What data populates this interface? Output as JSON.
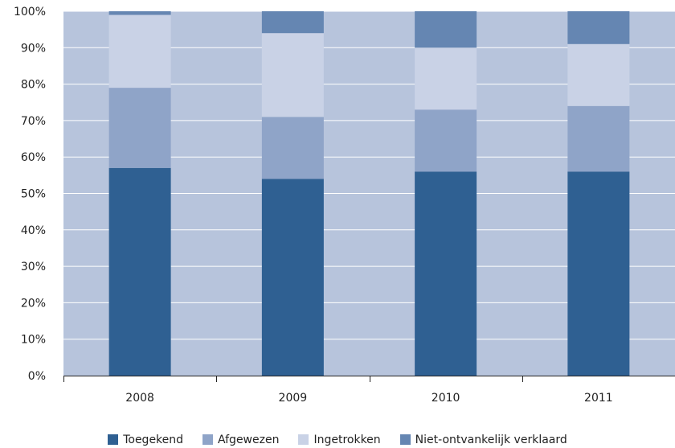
{
  "chart_data": {
    "type": "bar",
    "stacked": true,
    "categories": [
      "2008",
      "2009",
      "2010",
      "2011"
    ],
    "series": [
      {
        "name": "Toegekend",
        "color": "#2f6092",
        "values": [
          57,
          54,
          56,
          56
        ]
      },
      {
        "name": "Afgewezen",
        "color": "#8fa4c8",
        "values": [
          22,
          17,
          17,
          18
        ]
      },
      {
        "name": "Ingetrokken",
        "color": "#c9d2e6",
        "values": [
          20,
          23,
          17,
          17
        ]
      },
      {
        "name": "Niet-ontvankelijk verklaard",
        "color": "#6586b2",
        "values": [
          1,
          6,
          10,
          9
        ]
      }
    ],
    "yticks": [
      "0%",
      "10%",
      "20%",
      "30%",
      "40%",
      "50%",
      "60%",
      "70%",
      "80%",
      "90%",
      "100%"
    ],
    "ylim": [
      0,
      100
    ],
    "grid": true,
    "legend_position": "bottom",
    "plot_background": "#b7c4dc",
    "gridline_color": "#ffffff"
  }
}
